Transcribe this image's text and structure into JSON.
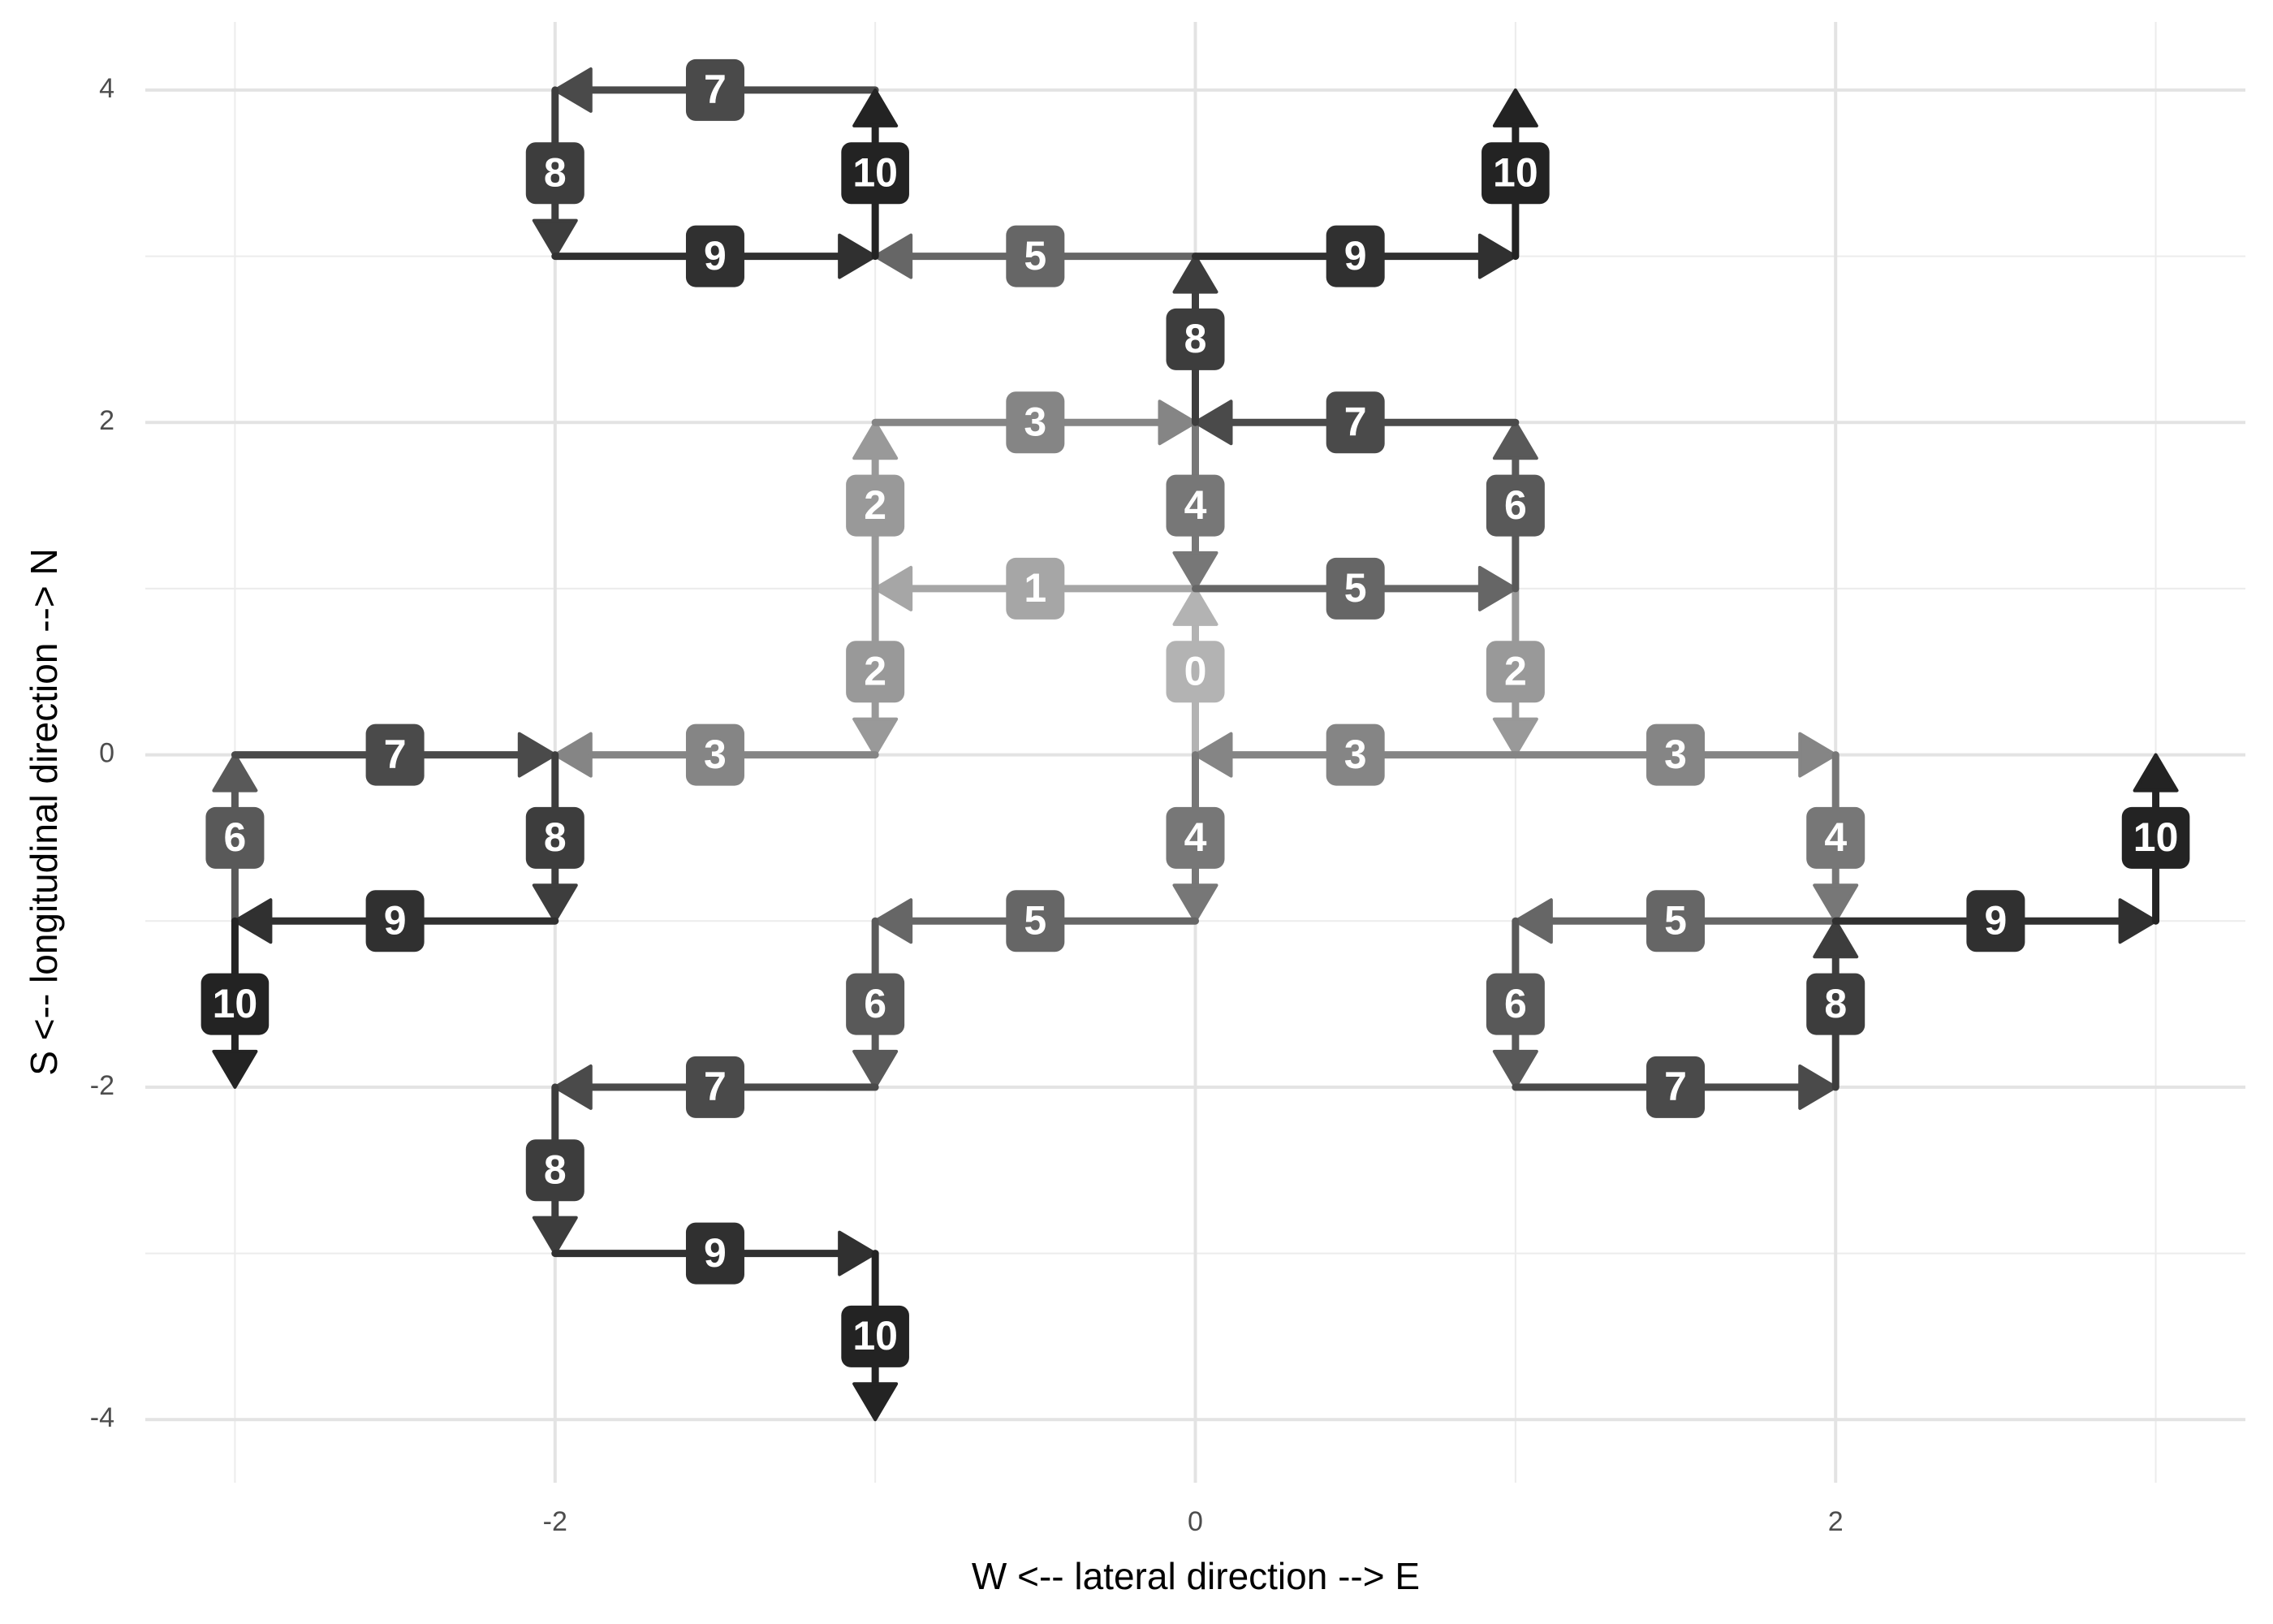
{
  "chart_data": {
    "type": "arrows",
    "xlabel": "W <--  lateral direction  --> E",
    "ylabel": "S <--  longitudinal direction  --> N",
    "xlim": [
      -3.28,
      3.28
    ],
    "ylim": [
      -4.38,
      4.41
    ],
    "xticks": [
      -2,
      0,
      2
    ],
    "yticks": [
      -4,
      -2,
      0,
      2,
      4
    ],
    "x_minor_ticks": [
      -3,
      -1,
      1,
      3
    ],
    "y_minor_ticks": [
      -3,
      -1,
      1,
      3
    ],
    "grid": true,
    "segments": [
      {
        "step": 0,
        "x": [
          0,
          0
        ],
        "y": [
          0,
          1
        ],
        "color": "#b3b3b3"
      },
      {
        "step": 1,
        "x": [
          0,
          -1
        ],
        "y": [
          1,
          1
        ],
        "color": "#a6a6a6"
      },
      {
        "step": 2,
        "x": [
          -1,
          -1
        ],
        "y": [
          1,
          2
        ],
        "color": "#999999"
      },
      {
        "step": 2,
        "x": [
          -1,
          -1
        ],
        "y": [
          1,
          0
        ],
        "color": "#999999"
      },
      {
        "step": 2,
        "x": [
          1,
          1
        ],
        "y": [
          1,
          0
        ],
        "color": "#999999"
      },
      {
        "step": 3,
        "x": [
          -1,
          0
        ],
        "y": [
          2,
          2
        ],
        "color": "#858585"
      },
      {
        "step": 3,
        "x": [
          -1,
          -2
        ],
        "y": [
          0,
          0
        ],
        "color": "#858585"
      },
      {
        "step": 3,
        "x": [
          1,
          0
        ],
        "y": [
          0,
          0
        ],
        "color": "#858585"
      },
      {
        "step": 3,
        "x": [
          1,
          2
        ],
        "y": [
          0,
          0
        ],
        "color": "#858585"
      },
      {
        "step": 4,
        "x": [
          0,
          0
        ],
        "y": [
          2,
          1
        ],
        "color": "#777777"
      },
      {
        "step": 4,
        "x": [
          0,
          0
        ],
        "y": [
          0,
          -1
        ],
        "color": "#777777"
      },
      {
        "step": 4,
        "x": [
          2,
          2
        ],
        "y": [
          0,
          -1
        ],
        "color": "#777777"
      },
      {
        "step": 5,
        "x": [
          0,
          1
        ],
        "y": [
          1,
          1
        ],
        "color": "#666666"
      },
      {
        "step": 5,
        "x": [
          0,
          -1
        ],
        "y": [
          3,
          3
        ],
        "color": "#666666"
      },
      {
        "step": 5,
        "x": [
          0,
          -1
        ],
        "y": [
          -1,
          -1
        ],
        "color": "#666666"
      },
      {
        "step": 5,
        "x": [
          2,
          1
        ],
        "y": [
          -1,
          -1
        ],
        "color": "#666666"
      },
      {
        "step": 6,
        "x": [
          1,
          1
        ],
        "y": [
          1,
          2
        ],
        "color": "#595959"
      },
      {
        "step": 6,
        "x": [
          -3,
          -3
        ],
        "y": [
          -1,
          0
        ],
        "color": "#595959"
      },
      {
        "step": 6,
        "x": [
          -1,
          -1
        ],
        "y": [
          -1,
          -2
        ],
        "color": "#595959"
      },
      {
        "step": 6,
        "x": [
          1,
          1
        ],
        "y": [
          -1,
          -2
        ],
        "color": "#595959"
      },
      {
        "step": 7,
        "x": [
          1,
          0
        ],
        "y": [
          2,
          2
        ],
        "color": "#4a4a4a"
      },
      {
        "step": 7,
        "x": [
          -1,
          -2
        ],
        "y": [
          4,
          4
        ],
        "color": "#4a4a4a"
      },
      {
        "step": 7,
        "x": [
          -3,
          -2
        ],
        "y": [
          0,
          0
        ],
        "color": "#4a4a4a"
      },
      {
        "step": 7,
        "x": [
          -1,
          -2
        ],
        "y": [
          -2,
          -2
        ],
        "color": "#4a4a4a"
      },
      {
        "step": 7,
        "x": [
          1,
          2
        ],
        "y": [
          -2,
          -2
        ],
        "color": "#4a4a4a"
      },
      {
        "step": 8,
        "x": [
          0,
          0
        ],
        "y": [
          2,
          3
        ],
        "color": "#3d3d3d"
      },
      {
        "step": 8,
        "x": [
          -2,
          -2
        ],
        "y": [
          4,
          3
        ],
        "color": "#3d3d3d"
      },
      {
        "step": 8,
        "x": [
          -2,
          -2
        ],
        "y": [
          0,
          -1
        ],
        "color": "#3d3d3d"
      },
      {
        "step": 8,
        "x": [
          -2,
          -2
        ],
        "y": [
          -2,
          -3
        ],
        "color": "#3d3d3d"
      },
      {
        "step": 8,
        "x": [
          2,
          2
        ],
        "y": [
          -2,
          -1
        ],
        "color": "#3d3d3d"
      },
      {
        "step": 9,
        "x": [
          0,
          1
        ],
        "y": [
          3,
          3
        ],
        "color": "#303030"
      },
      {
        "step": 9,
        "x": [
          -2,
          -1
        ],
        "y": [
          3,
          3
        ],
        "color": "#303030"
      },
      {
        "step": 9,
        "x": [
          -2,
          -3
        ],
        "y": [
          -1,
          -1
        ],
        "color": "#303030"
      },
      {
        "step": 9,
        "x": [
          -2,
          -1
        ],
        "y": [
          -3,
          -3
        ],
        "color": "#303030"
      },
      {
        "step": 9,
        "x": [
          2,
          3
        ],
        "y": [
          -1,
          -1
        ],
        "color": "#303030"
      },
      {
        "step": 10,
        "x": [
          1,
          1
        ],
        "y": [
          3,
          4
        ],
        "color": "#232323"
      },
      {
        "step": 10,
        "x": [
          -1,
          -1
        ],
        "y": [
          3,
          4
        ],
        "color": "#232323"
      },
      {
        "step": 10,
        "x": [
          -3,
          -3
        ],
        "y": [
          -1,
          -2
        ],
        "color": "#232323"
      },
      {
        "step": 10,
        "x": [
          -1,
          -1
        ],
        "y": [
          -3,
          -4
        ],
        "color": "#232323"
      },
      {
        "step": 10,
        "x": [
          3,
          3
        ],
        "y": [
          -1,
          0
        ],
        "color": "#232323"
      }
    ]
  }
}
